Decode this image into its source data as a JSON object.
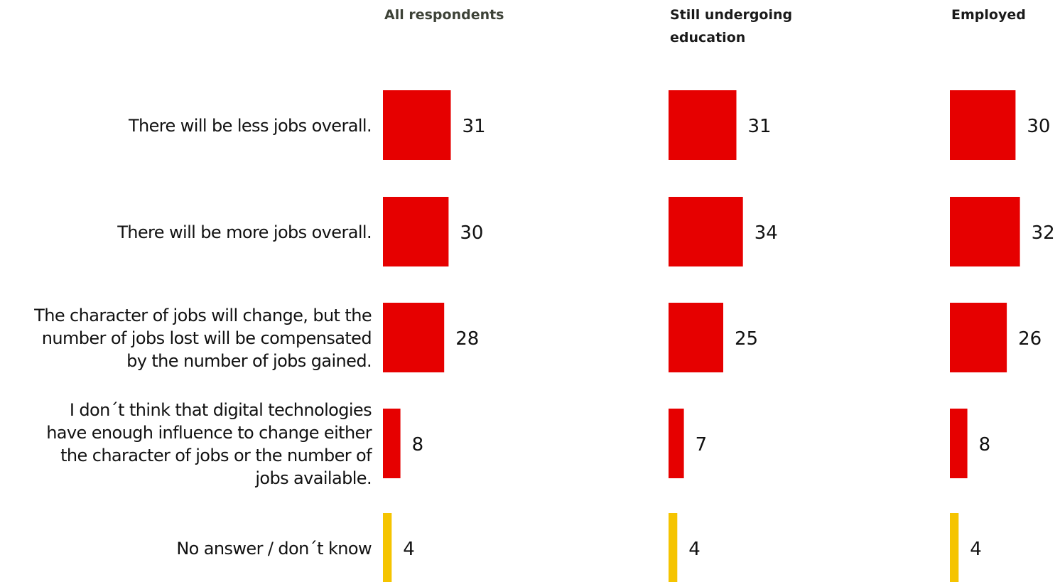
{
  "chart_data": {
    "type": "bar",
    "orientation": "horizontal",
    "layout": "small-multiples",
    "categories": [
      [
        "There will be less jobs overall."
      ],
      [
        "There will be more jobs overall."
      ],
      [
        "The character of jobs will change, but the",
        "number of jobs lost will be compensated",
        "by the number of jobs gained."
      ],
      [
        "I don´t think that digital technologies",
        "have enough influence to change either",
        "the character of jobs or the number of",
        "jobs available."
      ],
      [
        "No answer / don´t know"
      ]
    ],
    "series": [
      {
        "name": [
          "All respondents"
        ],
        "values": [
          31,
          30,
          28,
          8,
          4
        ]
      },
      {
        "name": [
          "Still undergoing",
          "education"
        ],
        "values": [
          31,
          34,
          25,
          7,
          4
        ]
      },
      {
        "name": [
          "Employed"
        ],
        "values": [
          30,
          32,
          26,
          8,
          4
        ]
      }
    ],
    "colors": {
      "answer": "#e60000",
      "no_answer": "#f5c400"
    },
    "grid": false,
    "legend": "none"
  }
}
